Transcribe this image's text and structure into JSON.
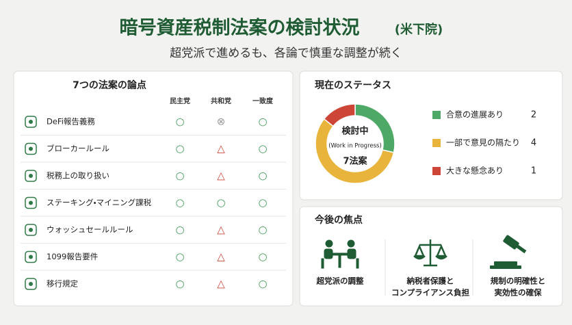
{
  "header": {
    "title": "暗号資産税制法案の検討状況",
    "title_note": "(米下院)",
    "subtitle": "超党派で進めるも、各論で慎重な調整が続く"
  },
  "table": {
    "title": "7つの法案の論点",
    "columns": [
      "民主党",
      "共和党",
      "一致度"
    ],
    "rows": [
      {
        "label": "DeFi報告義務",
        "cells": [
          "○",
          "⊗",
          "○"
        ]
      },
      {
        "label": "ブローカールール",
        "cells": [
          "○",
          "△",
          "○"
        ]
      },
      {
        "label": "税務上の取り扱い",
        "cells": [
          "○",
          "△",
          "○"
        ]
      },
      {
        "label": "ステーキング・マイニング課税",
        "cells": [
          "○",
          "○",
          "○"
        ]
      },
      {
        "label": "ウォッシュセールルール",
        "cells": [
          "○",
          "△",
          "○"
        ]
      },
      {
        "label": "1099報告要件",
        "cells": [
          "○",
          "△",
          "○"
        ]
      },
      {
        "label": "移行規定",
        "cells": [
          "○",
          "△",
          "○"
        ]
      }
    ]
  },
  "status": {
    "title": "現在のステータス",
    "center": [
      "検討中",
      "(Work in Progress)",
      "7法案"
    ],
    "items": [
      {
        "label": "合意の進展あり",
        "value": 2,
        "color": "#4ea866"
      },
      {
        "label": "一部で意見の隔たり",
        "value": 4,
        "color": "#e9b43b"
      },
      {
        "label": "大きな懸念あり",
        "value": 1,
        "color": "#cc4536"
      }
    ]
  },
  "focus": {
    "title": "今後の焦点",
    "items": [
      [
        "超党派の調整"
      ],
      [
        "納税者保護と",
        "コンプライアンス負担"
      ],
      [
        "規制の明確性と",
        "実効性の確保"
      ]
    ]
  }
}
